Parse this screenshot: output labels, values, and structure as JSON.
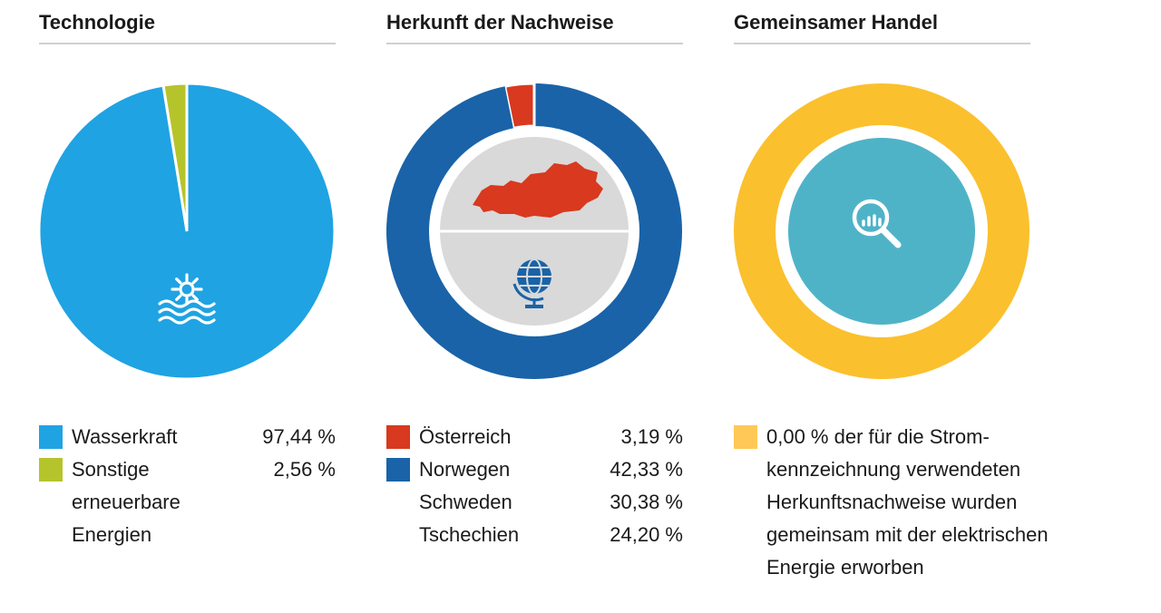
{
  "chart_data": [
    {
      "type": "pie",
      "title": "Technologie",
      "series": [
        {
          "name": "Wasserkraft",
          "value": 97.44,
          "label": "97,44 %",
          "color": "#1fa3e3"
        },
        {
          "name": "Sonstige erneuerbare Energien",
          "value": 2.56,
          "label": "2,56 %",
          "color": "#b6c42c"
        }
      ],
      "icon": "hydro-power-icon"
    },
    {
      "type": "pie",
      "title": "Herkunft der Nachweise",
      "series": [
        {
          "name": "Österreich",
          "value": 3.19,
          "label": "3,19 %",
          "color": "#d8391f"
        },
        {
          "name": "Norwegen",
          "value": 42.33,
          "label": "42,33 %",
          "color": "#1a63a8"
        },
        {
          "name": "Schweden",
          "value": 30.38,
          "label": "30,38 %",
          "color": "#1a63a8"
        },
        {
          "name": "Tschechien",
          "value": 24.2,
          "label": "24,20 %",
          "color": "#1a63a8"
        }
      ],
      "icons": [
        "austria-map-icon",
        "globe-icon"
      ]
    },
    {
      "type": "pie",
      "title": "Gemeinsamer Handel",
      "series": [
        {
          "name": "",
          "value": 0.0,
          "label": "0,00 %",
          "color": "#fbc02d"
        }
      ],
      "description": "0,00 % der für die Strom-kennzeichnung verwendeten Herkunftsnachweise wurden gemeinsam mit der elektrischen Energie erworben",
      "description_lines": [
        "0,00 % der für die Strom-",
        "kennzeichnung verwendeten",
        "Herkunftsnachweise wurden",
        "gemeinsam mit der elektrischen",
        "Energie erworben"
      ],
      "icon": "search-chart-icon",
      "center_color": "#4fb3c8",
      "legend_color": "#ffc857"
    }
  ],
  "legend": {
    "technologie": [
      {
        "lines": [
          "Wasserkraft"
        ],
        "value": "97,44 %"
      },
      {
        "lines": [
          "Sonstige",
          "erneuerbare",
          "Energien"
        ],
        "value": "2,56 %"
      }
    ]
  }
}
